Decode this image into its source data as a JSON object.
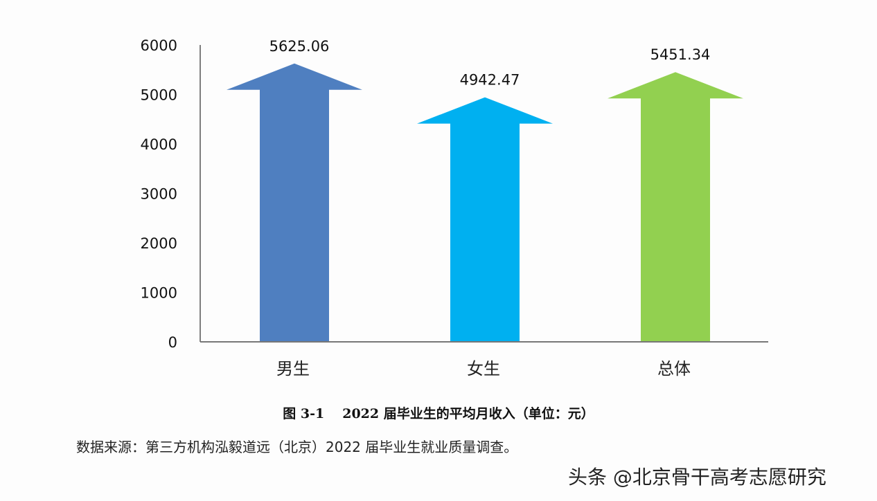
{
  "chart_data": {
    "type": "bar",
    "style": "arrow-bars",
    "title": "2022 届毕业生的平均月收入（单位：元）",
    "figure_number": "图 3-1",
    "categories": [
      "男生",
      "女生",
      "总体"
    ],
    "values": [
      5625.06,
      4942.47,
      5451.34
    ],
    "data_labels": [
      "5625.06",
      "4942.47",
      "5451.34"
    ],
    "colors": [
      "#4f7fc0",
      "#00b0f0",
      "#92d050"
    ],
    "xlabel": "",
    "ylabel": "",
    "ylim": [
      0,
      6000
    ],
    "yticks": [
      "0",
      "1000",
      "2000",
      "3000",
      "4000",
      "5000",
      "6000"
    ],
    "grid": false,
    "legend": null
  },
  "caption": {
    "figure_number": "图 3-1",
    "title": "2022 届毕业生的平均月收入（单位：元）"
  },
  "source": "数据来源：第三方机构泓毅道远（北京）2022 届毕业生就业质量调查。",
  "watermark": "头条 @北京骨干高考志愿研究"
}
